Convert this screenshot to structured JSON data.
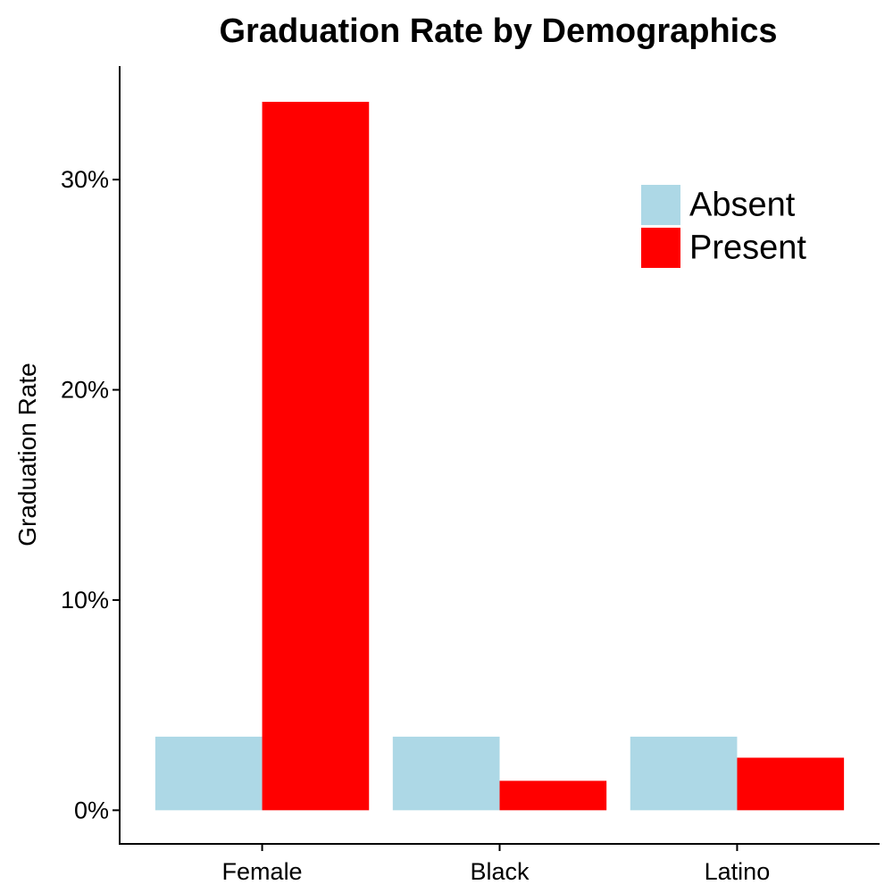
{
  "chart_data": {
    "type": "bar",
    "title": "Graduation Rate by Demographics",
    "xlabel": "",
    "ylabel": "Graduation Rate",
    "categories": [
      "Female",
      "Black",
      "Latino"
    ],
    "series": [
      {
        "name": "Absent",
        "values": [
          3.5,
          3.5,
          3.5
        ],
        "color": "#add8e6"
      },
      {
        "name": "Present",
        "values": [
          33.7,
          1.4,
          2.5
        ],
        "color": "#ff0000"
      }
    ],
    "ylim": [
      -1.6,
      35.4
    ],
    "yticks": [
      0,
      10,
      20,
      30
    ],
    "ytick_labels": [
      "0%",
      "10%",
      "20%",
      "30%"
    ],
    "grid": false,
    "legend_position": "top-right"
  }
}
